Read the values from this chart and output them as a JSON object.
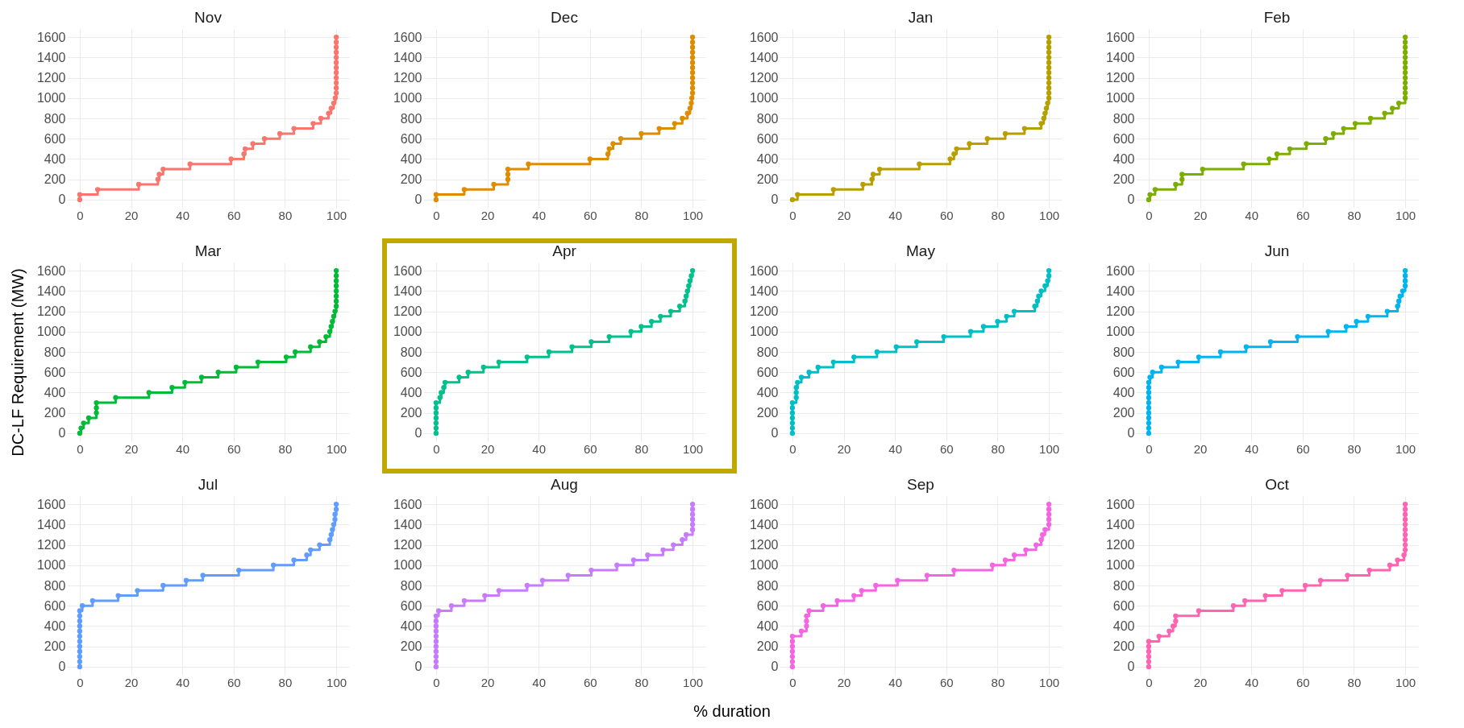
{
  "chart_data": [
    {
      "type": "step",
      "title": "Nov",
      "color": "#f8766d",
      "x": [
        0,
        0,
        7,
        23,
        30.5,
        31,
        32.5,
        43,
        59,
        64,
        64.5,
        67.5,
        72,
        78,
        83.5,
        91,
        94,
        97,
        98,
        99,
        99.6,
        100,
        100,
        100,
        100,
        100,
        100,
        100,
        100,
        100,
        100,
        100,
        100
      ],
      "values": [
        0,
        50,
        100,
        150,
        200,
        250,
        300,
        350,
        400,
        450,
        500,
        550,
        600,
        650,
        700,
        750,
        800,
        850,
        900,
        950,
        1000,
        1050,
        1100,
        1150,
        1200,
        1250,
        1300,
        1350,
        1400,
        1450,
        1500,
        1550,
        1600
      ],
      "xlim": [
        -5,
        105
      ],
      "xticks": [
        0,
        20,
        40,
        60,
        80,
        100
      ],
      "ylim": [
        -80,
        1680
      ],
      "yticks": [
        0,
        200,
        400,
        600,
        800,
        1000,
        1200,
        1400,
        1600
      ],
      "grid": true,
      "marker": "circle"
    },
    {
      "type": "step",
      "title": "Dec",
      "color": "#de8c00",
      "x": [
        0,
        0,
        11,
        22.5,
        28,
        28,
        28,
        36,
        60,
        67,
        67.5,
        69,
        72,
        80,
        87,
        93,
        96,
        98,
        99,
        99.5,
        99.7,
        100,
        100,
        100,
        100,
        100,
        100,
        100,
        100,
        100,
        100,
        100,
        100
      ],
      "values": [
        0,
        50,
        100,
        150,
        200,
        250,
        300,
        350,
        400,
        450,
        500,
        550,
        600,
        650,
        700,
        750,
        800,
        850,
        900,
        950,
        1000,
        1050,
        1100,
        1150,
        1200,
        1250,
        1300,
        1350,
        1400,
        1450,
        1500,
        1550,
        1600
      ],
      "xlim": [
        -5,
        105
      ],
      "xticks": [
        0,
        20,
        40,
        60,
        80,
        100
      ],
      "ylim": [
        -80,
        1680
      ],
      "yticks": [
        0,
        200,
        400,
        600,
        800,
        1000,
        1200,
        1400,
        1600
      ],
      "grid": true,
      "marker": "circle"
    },
    {
      "type": "step",
      "title": "Jan",
      "color": "#b79f00",
      "x": [
        0,
        2,
        16,
        27.5,
        31,
        31.5,
        34,
        49.5,
        61.5,
        63,
        64,
        69,
        76,
        83,
        90.5,
        97,
        98,
        98.5,
        99,
        99.5,
        100,
        100,
        100,
        100,
        100,
        100,
        100,
        100,
        100,
        100,
        100,
        100,
        100
      ],
      "values": [
        0,
        50,
        100,
        150,
        200,
        250,
        300,
        350,
        400,
        450,
        500,
        550,
        600,
        650,
        700,
        750,
        800,
        850,
        900,
        950,
        1000,
        1050,
        1100,
        1150,
        1200,
        1250,
        1300,
        1350,
        1400,
        1450,
        1500,
        1550,
        1600
      ],
      "xlim": [
        -5,
        105
      ],
      "xticks": [
        0,
        20,
        40,
        60,
        80,
        100
      ],
      "ylim": [
        -80,
        1680
      ],
      "yticks": [
        0,
        200,
        400,
        600,
        800,
        1000,
        1200,
        1400,
        1600
      ],
      "grid": true,
      "marker": "circle"
    },
    {
      "type": "step",
      "title": "Feb",
      "color": "#7cae00",
      "x": [
        0,
        0.5,
        2.5,
        10.5,
        13,
        13,
        21,
        37,
        47,
        50,
        55,
        61.5,
        69,
        72,
        76,
        80.5,
        86.5,
        92,
        95,
        97.5,
        100,
        100,
        100,
        100,
        100,
        100,
        100,
        100,
        100,
        100,
        100,
        100,
        100
      ],
      "values": [
        0,
        50,
        100,
        150,
        200,
        250,
        300,
        350,
        400,
        450,
        500,
        550,
        600,
        650,
        700,
        750,
        800,
        850,
        900,
        950,
        1000,
        1050,
        1100,
        1150,
        1200,
        1250,
        1300,
        1350,
        1400,
        1450,
        1500,
        1550,
        1600
      ],
      "xlim": [
        -5,
        105
      ],
      "xticks": [
        0,
        20,
        40,
        60,
        80,
        100
      ],
      "ylim": [
        -80,
        1680
      ],
      "yticks": [
        0,
        200,
        400,
        600,
        800,
        1000,
        1200,
        1400,
        1600
      ],
      "grid": true,
      "marker": "circle"
    },
    {
      "type": "step",
      "title": "Mar",
      "ylabel": "DC-LF Requirement (MW)",
      "color": "#00ba38",
      "x": [
        0,
        0.5,
        1.5,
        3.5,
        6.5,
        6.5,
        6.5,
        14,
        27,
        36,
        41,
        47.5,
        54,
        61,
        69.5,
        80.5,
        84,
        90,
        93.5,
        96,
        97.5,
        98,
        98.5,
        99,
        99.5,
        100,
        100,
        100,
        100,
        100,
        100,
        100,
        100
      ],
      "values": [
        0,
        50,
        100,
        150,
        200,
        250,
        300,
        350,
        400,
        450,
        500,
        550,
        600,
        650,
        700,
        750,
        800,
        850,
        900,
        950,
        1000,
        1050,
        1100,
        1150,
        1200,
        1250,
        1300,
        1350,
        1400,
        1450,
        1500,
        1550,
        1600
      ],
      "xlim": [
        -5,
        105
      ],
      "xticks": [
        0,
        20,
        40,
        60,
        80,
        100
      ],
      "ylim": [
        -80,
        1680
      ],
      "yticks": [
        0,
        200,
        400,
        600,
        800,
        1000,
        1200,
        1400,
        1600
      ],
      "grid": true,
      "marker": "circle"
    },
    {
      "type": "step",
      "title": "Apr",
      "color": "#00c08b",
      "x": [
        0,
        0,
        0,
        0,
        0,
        0,
        0,
        1.5,
        2,
        3,
        3.5,
        9,
        12.5,
        18.5,
        24.5,
        35.5,
        44,
        53,
        60.5,
        67.5,
        76,
        80,
        84,
        87.5,
        91.5,
        95,
        97,
        97.5,
        98,
        98.5,
        99,
        99.5,
        100
      ],
      "values": [
        0,
        50,
        100,
        150,
        200,
        250,
        300,
        350,
        400,
        450,
        500,
        550,
        600,
        650,
        700,
        750,
        800,
        850,
        900,
        950,
        1000,
        1050,
        1100,
        1150,
        1200,
        1250,
        1300,
        1350,
        1400,
        1450,
        1500,
        1550,
        1600
      ],
      "xlim": [
        -5,
        105
      ],
      "xticks": [
        0,
        20,
        40,
        60,
        80,
        100
      ],
      "ylim": [
        -80,
        1680
      ],
      "yticks": [
        0,
        200,
        400,
        600,
        800,
        1000,
        1200,
        1400,
        1600
      ],
      "grid": true,
      "marker": "circle"
    },
    {
      "type": "step",
      "title": "May",
      "color": "#00bfc4",
      "x": [
        0,
        0,
        0,
        0,
        0,
        0,
        0,
        1.5,
        1.5,
        1.5,
        2,
        3.5,
        6.5,
        10,
        16,
        24,
        33,
        40.5,
        48.5,
        59,
        69.5,
        74.5,
        80,
        83.5,
        86.5,
        94.5,
        95.5,
        96,
        97,
        98.5,
        99.5,
        100,
        100
      ],
      "values": [
        0,
        50,
        100,
        150,
        200,
        250,
        300,
        350,
        400,
        450,
        500,
        550,
        600,
        650,
        700,
        750,
        800,
        850,
        900,
        950,
        1000,
        1050,
        1100,
        1150,
        1200,
        1250,
        1300,
        1350,
        1400,
        1450,
        1500,
        1550,
        1600
      ],
      "xlim": [
        -5,
        105
      ],
      "xticks": [
        0,
        20,
        40,
        60,
        80,
        100
      ],
      "ylim": [
        -80,
        1680
      ],
      "yticks": [
        0,
        200,
        400,
        600,
        800,
        1000,
        1200,
        1400,
        1600
      ],
      "grid": true,
      "marker": "circle"
    },
    {
      "type": "step",
      "title": "Jun",
      "color": "#00b4f0",
      "x": [
        0,
        0,
        0,
        0,
        0,
        0,
        0,
        0,
        0,
        0,
        0,
        0.5,
        1.5,
        5,
        11.5,
        19.5,
        28,
        38,
        47.5,
        58,
        70,
        77,
        81,
        85.5,
        93,
        97,
        97.5,
        98,
        99,
        100,
        100,
        100,
        100
      ],
      "values": [
        0,
        50,
        100,
        150,
        200,
        250,
        300,
        350,
        400,
        450,
        500,
        550,
        600,
        650,
        700,
        750,
        800,
        850,
        900,
        950,
        1000,
        1050,
        1100,
        1150,
        1200,
        1250,
        1300,
        1350,
        1400,
        1450,
        1500,
        1550,
        1600
      ],
      "xlim": [
        -5,
        105
      ],
      "xticks": [
        0,
        20,
        40,
        60,
        80,
        100
      ],
      "ylim": [
        -80,
        1680
      ],
      "yticks": [
        0,
        200,
        400,
        600,
        800,
        1000,
        1200,
        1400,
        1600
      ],
      "grid": true,
      "marker": "circle"
    },
    {
      "type": "step",
      "title": "Jul",
      "color": "#619cff",
      "x": [
        0,
        0,
        0,
        0,
        0,
        0,
        0,
        0,
        0,
        0,
        0,
        0,
        1,
        5,
        15,
        22.5,
        32.5,
        41.5,
        48,
        62,
        75.5,
        83.5,
        88.5,
        90,
        93.5,
        97.5,
        98,
        98.5,
        99,
        99.5,
        99.5,
        100,
        100
      ],
      "values": [
        0,
        50,
        100,
        150,
        200,
        250,
        300,
        350,
        400,
        450,
        500,
        550,
        600,
        650,
        700,
        750,
        800,
        850,
        900,
        950,
        1000,
        1050,
        1100,
        1150,
        1200,
        1250,
        1300,
        1350,
        1400,
        1450,
        1500,
        1550,
        1600
      ],
      "xlim": [
        -5,
        105
      ],
      "xticks": [
        0,
        20,
        40,
        60,
        80,
        100
      ],
      "ylim": [
        -80,
        1680
      ],
      "yticks": [
        0,
        200,
        400,
        600,
        800,
        1000,
        1200,
        1400,
        1600
      ],
      "grid": true,
      "marker": "circle"
    },
    {
      "type": "step",
      "title": "Aug",
      "color": "#c77cff",
      "x": [
        0,
        0,
        0,
        0,
        0,
        0,
        0,
        0,
        0,
        0,
        0,
        1,
        6,
        11,
        19,
        24.5,
        35.5,
        41.5,
        51.5,
        60.5,
        70.5,
        77,
        82.5,
        88.5,
        92.5,
        96,
        97.5,
        100,
        100,
        100,
        100,
        100,
        100
      ],
      "values": [
        0,
        50,
        100,
        150,
        200,
        250,
        300,
        350,
        400,
        450,
        500,
        550,
        600,
        650,
        700,
        750,
        800,
        850,
        900,
        950,
        1000,
        1050,
        1100,
        1150,
        1200,
        1250,
        1300,
        1350,
        1400,
        1450,
        1500,
        1550,
        1600
      ],
      "xlim": [
        -5,
        105
      ],
      "xticks": [
        0,
        20,
        40,
        60,
        80,
        100
      ],
      "ylim": [
        -80,
        1680
      ],
      "yticks": [
        0,
        200,
        400,
        600,
        800,
        1000,
        1200,
        1400,
        1600
      ],
      "grid": true,
      "marker": "circle"
    },
    {
      "type": "step",
      "title": "Sep",
      "xlabel": "% duration",
      "color": "#f564e3",
      "x": [
        0,
        0,
        0,
        0,
        0,
        0,
        0,
        3.5,
        5.5,
        5.5,
        5.5,
        6.5,
        12,
        17.5,
        24,
        27,
        32.5,
        41,
        52.5,
        63,
        78,
        83,
        86.5,
        91,
        95,
        97,
        97.5,
        98.5,
        100,
        100,
        100,
        100,
        100
      ],
      "values": [
        0,
        50,
        100,
        150,
        200,
        250,
        300,
        350,
        400,
        450,
        500,
        550,
        600,
        650,
        700,
        750,
        800,
        850,
        900,
        950,
        1000,
        1050,
        1100,
        1150,
        1200,
        1250,
        1300,
        1350,
        1400,
        1450,
        1500,
        1550,
        1600
      ],
      "xlim": [
        -5,
        105
      ],
      "xticks": [
        0,
        20,
        40,
        60,
        80,
        100
      ],
      "ylim": [
        -80,
        1680
      ],
      "yticks": [
        0,
        200,
        400,
        600,
        800,
        1000,
        1200,
        1400,
        1600
      ],
      "grid": true,
      "marker": "circle"
    },
    {
      "type": "step",
      "title": "Oct",
      "color": "#ff64b0",
      "x": [
        0,
        0,
        0,
        0,
        0,
        0,
        4,
        8,
        9.5,
        10.5,
        10.5,
        19.5,
        33,
        37.5,
        45.5,
        52,
        61,
        67,
        77.5,
        86,
        94,
        97,
        99.5,
        100,
        100,
        100,
        100,
        100,
        100,
        100,
        100,
        100,
        100
      ],
      "values": [
        0,
        50,
        100,
        150,
        200,
        250,
        300,
        350,
        400,
        450,
        500,
        550,
        600,
        650,
        700,
        750,
        800,
        850,
        900,
        950,
        1000,
        1050,
        1100,
        1150,
        1200,
        1250,
        1300,
        1350,
        1400,
        1450,
        1500,
        1550,
        1600
      ],
      "xlim": [
        -5,
        105
      ],
      "xticks": [
        0,
        20,
        40,
        60,
        80,
        100
      ],
      "ylim": [
        -80,
        1680
      ],
      "yticks": [
        0,
        200,
        400,
        600,
        800,
        1000,
        1200,
        1400,
        1600
      ],
      "grid": true,
      "marker": "circle"
    }
  ]
}
